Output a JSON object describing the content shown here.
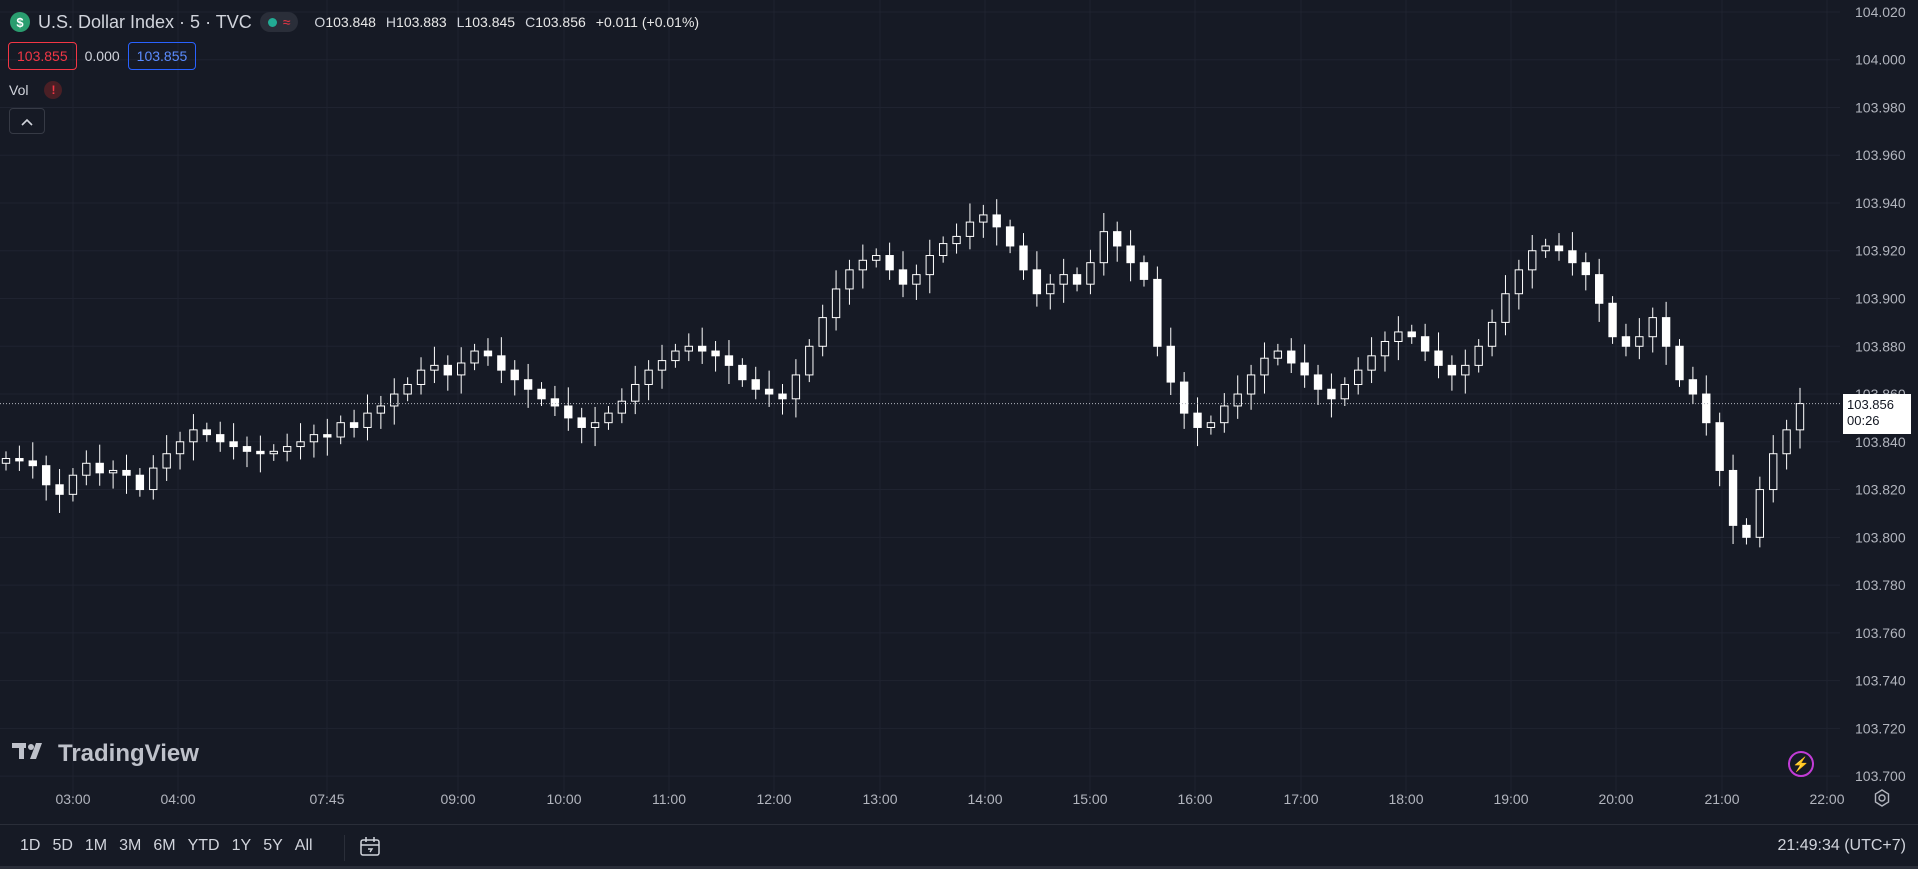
{
  "symbol": {
    "icon": "dollar-icon",
    "title": "U.S. Dollar Index · 5 · TVC",
    "ohlc": [
      {
        "k": "O",
        "v": "103.848"
      },
      {
        "k": "H",
        "v": "103.883"
      },
      {
        "k": "L",
        "v": "103.845"
      },
      {
        "k": "C",
        "v": "103.856"
      }
    ],
    "change": "+0.011 (+0.01%)"
  },
  "trade": {
    "sell": "103.855",
    "spread": "0.000",
    "buy": "103.855"
  },
  "volume": {
    "label": "Vol",
    "warning": "!"
  },
  "watermark": "TradingView",
  "last_price": {
    "value": "103.856",
    "countdown": "00:26"
  },
  "ranges": [
    "1D",
    "5D",
    "1M",
    "3M",
    "6M",
    "YTD",
    "1Y",
    "5Y",
    "All"
  ],
  "clock": "21:49:34 (UTC+7)",
  "colors": {
    "background": "#161a25",
    "candle": "#ffffff",
    "grid": "#1f2330",
    "sell": "#f23645",
    "buy": "#2962ff"
  },
  "chart_data": {
    "type": "candlestick",
    "y_ticks": [
      "104.020",
      "104.000",
      "103.980",
      "103.960",
      "103.940",
      "103.920",
      "103.900",
      "103.880",
      "103.860",
      "103.840",
      "103.820",
      "103.800",
      "103.780",
      "103.760",
      "103.740",
      "103.720",
      "103.700"
    ],
    "ylim": [
      103.69,
      104.025
    ],
    "x_ticks": [
      "03:00",
      "04:00",
      "07:45",
      "09:00",
      "10:00",
      "11:00",
      "12:00",
      "13:00",
      "14:00",
      "15:00",
      "16:00",
      "17:00",
      "18:00",
      "19:00",
      "20:00",
      "21:00",
      "22:00"
    ],
    "last_price": 103.856,
    "closes": [
      103.833,
      103.832,
      103.83,
      103.822,
      103.818,
      103.826,
      103.831,
      103.827,
      103.828,
      103.826,
      103.82,
      103.829,
      103.835,
      103.84,
      103.845,
      103.843,
      103.84,
      103.838,
      103.836,
      103.835,
      103.836,
      103.838,
      103.84,
      103.843,
      103.842,
      103.848,
      103.846,
      103.852,
      103.855,
      103.86,
      103.864,
      103.87,
      103.872,
      103.868,
      103.873,
      103.878,
      103.876,
      103.87,
      103.866,
      103.862,
      103.858,
      103.855,
      103.85,
      103.846,
      103.848,
      103.852,
      103.857,
      103.864,
      103.87,
      103.874,
      103.878,
      103.88,
      103.878,
      103.876,
      103.872,
      103.866,
      103.862,
      103.86,
      103.858,
      103.868,
      103.88,
      103.892,
      103.904,
      103.912,
      103.916,
      103.918,
      103.912,
      103.906,
      103.91,
      103.918,
      103.923,
      103.926,
      103.932,
      103.935,
      103.93,
      103.922,
      103.912,
      103.902,
      103.906,
      103.91,
      103.906,
      103.915,
      103.928,
      103.922,
      103.915,
      103.908,
      103.88,
      103.865,
      103.852,
      103.846,
      103.848,
      103.855,
      103.86,
      103.868,
      103.875,
      103.878,
      103.873,
      103.868,
      103.862,
      103.858,
      103.864,
      103.87,
      103.876,
      103.882,
      103.886,
      103.884,
      103.878,
      103.872,
      103.868,
      103.872,
      103.88,
      103.89,
      103.902,
      103.912,
      103.92,
      103.922,
      103.92,
      103.915,
      103.91,
      103.898,
      103.884,
      103.88,
      103.884,
      103.892,
      103.88,
      103.866,
      103.86,
      103.848,
      103.828,
      103.805,
      103.8,
      103.82,
      103.835,
      103.845,
      103.856
    ]
  }
}
